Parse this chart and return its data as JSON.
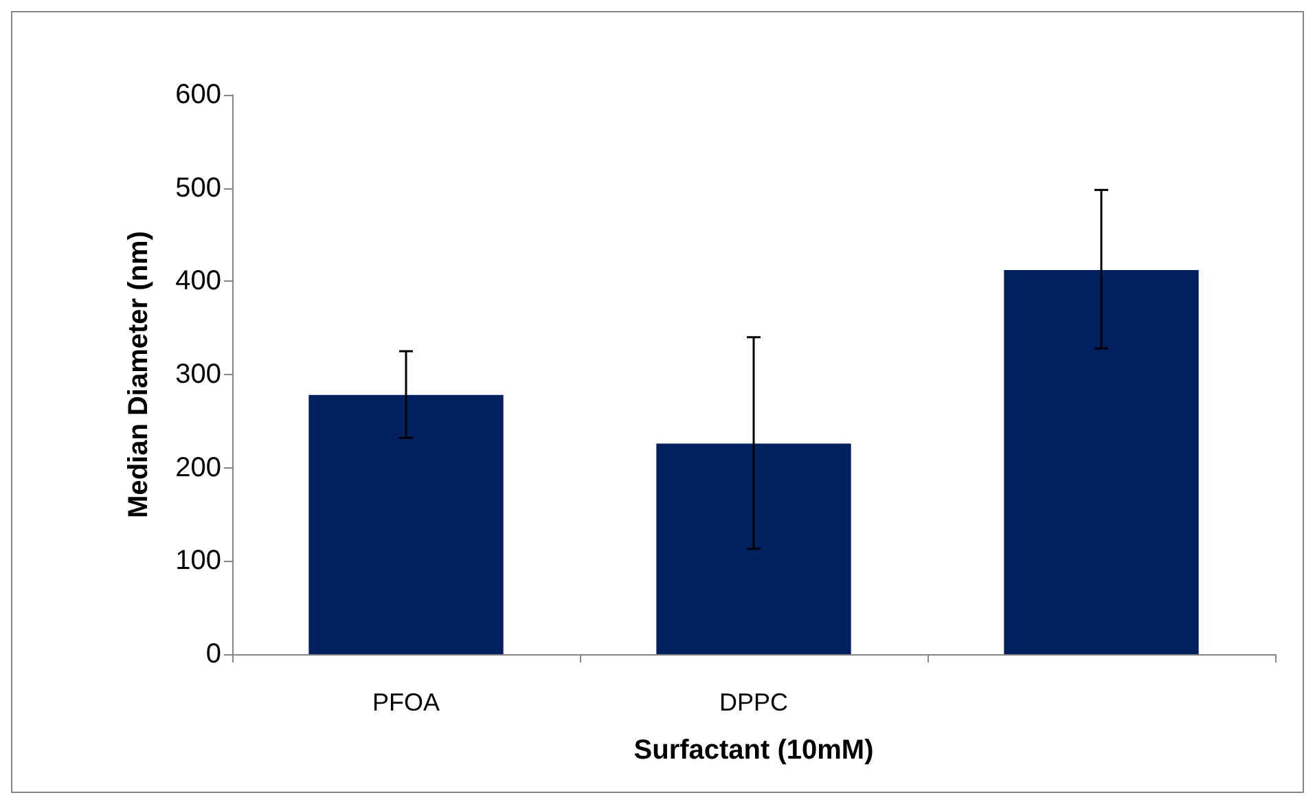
{
  "chart_data": {
    "type": "bar",
    "xlabel": "Surfactant (10mM)",
    "ylabel": "Median Diameter (nm)",
    "categories": [
      "PFOA",
      "DPPC",
      null
    ],
    "values": [
      278,
      226,
      412
    ],
    "errors": [
      [
        232,
        325
      ],
      [
        113,
        340
      ],
      [
        328,
        498
      ]
    ],
    "color": "#002060",
    "ylim": [
      0,
      600
    ],
    "yticks": [
      0,
      100,
      200,
      300,
      400,
      500,
      600
    ],
    "grid": false
  }
}
